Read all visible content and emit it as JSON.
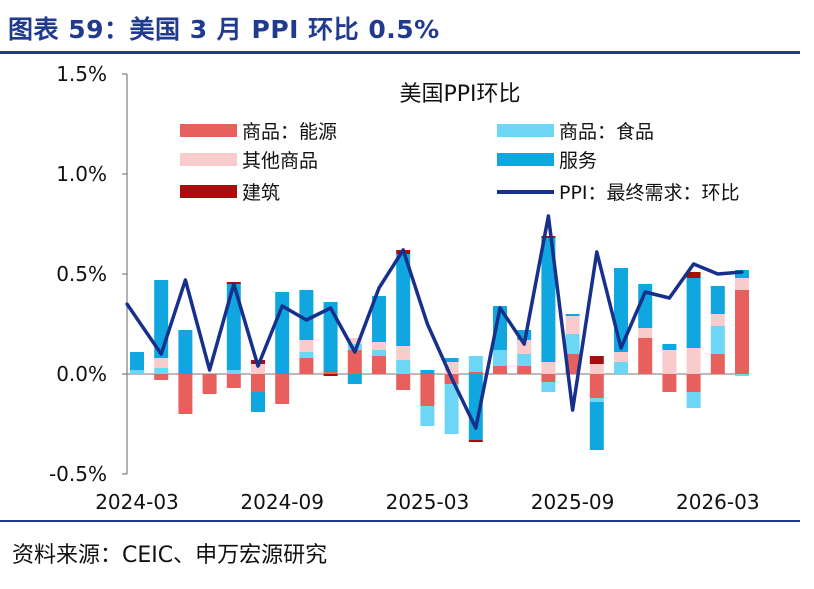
{
  "figure": {
    "title": "图表 59：美国 3 月 PPI 环比 0.5%",
    "source": "资料来源：CEIC、申万宏源研究"
  },
  "colors": {
    "energy": "#e8605e",
    "food": "#6dd6f5",
    "other_goods": "#f8cccc",
    "services": "#10a7e1",
    "construction": "#a90e0e",
    "ppi_line": "#17308c",
    "accent": "#1f3a8f"
  },
  "chart_data": {
    "type": "bar",
    "title": "美国PPI环比",
    "xlabel": "",
    "ylabel": "",
    "ylim": [
      -0.5,
      1.5
    ],
    "y_ticks": [
      "-0.5%",
      "0.0%",
      "0.5%",
      "1.0%",
      "1.5%"
    ],
    "y_tick_values": [
      -0.5,
      0.0,
      0.5,
      1.0,
      1.5
    ],
    "x_tick_labels": [
      "2024-03",
      "2024-09",
      "2025-03",
      "2025-09",
      "2026-03"
    ],
    "x_tick_indices": [
      0,
      6,
      12,
      18,
      24
    ],
    "legend_position": "top",
    "grid": false,
    "categories": [
      "2024-02",
      "2024-03",
      "2024-04",
      "2024-05",
      "2024-06",
      "2024-07",
      "2024-08",
      "2024-09",
      "2024-10",
      "2024-11",
      "2024-12",
      "2025-01",
      "2025-02",
      "2025-03",
      "2025-04",
      "2025-05",
      "2025-06",
      "2025-07",
      "2025-08",
      "2025-09",
      "2025-10",
      "2025-11",
      "2025-12",
      "2026-01",
      "2026-02",
      "2026-03"
    ],
    "series": [
      {
        "name": "商品：能源",
        "kind": "bar",
        "color_key": "energy",
        "values": [
          0.0,
          -0.03,
          -0.2,
          -0.1,
          -0.07,
          -0.09,
          -0.15,
          0.08,
          0.01,
          0.12,
          0.09,
          -0.08,
          -0.16,
          -0.05,
          0.01,
          0.04,
          0.04,
          -0.04,
          0.1,
          -0.12,
          0.0,
          0.18,
          -0.09,
          -0.09,
          0.1,
          0.42
        ]
      },
      {
        "name": "商品：食品",
        "kind": "bar",
        "color_key": "food",
        "values": [
          0.02,
          0.03,
          0.0,
          0.0,
          0.02,
          0.0,
          0.0,
          0.03,
          0.0,
          0.03,
          0.03,
          0.07,
          -0.1,
          -0.25,
          0.08,
          0.08,
          0.06,
          -0.05,
          0.1,
          -0.02,
          0.06,
          0.0,
          0.0,
          -0.08,
          0.14,
          -0.01
        ]
      },
      {
        "name": "其他商品",
        "kind": "bar",
        "color_key": "other_goods",
        "values": [
          0.0,
          0.05,
          0.0,
          0.0,
          0.0,
          0.05,
          0.0,
          0.06,
          0.0,
          0.03,
          0.04,
          0.07,
          0.0,
          0.06,
          0.0,
          0.0,
          0.07,
          0.06,
          0.09,
          0.05,
          0.05,
          0.05,
          0.12,
          0.13,
          0.06,
          0.06
        ]
      },
      {
        "name": "服务",
        "kind": "bar",
        "color_key": "services",
        "values": [
          0.09,
          0.39,
          0.22,
          0.0,
          0.43,
          -0.1,
          0.41,
          0.25,
          0.35,
          -0.05,
          0.23,
          0.46,
          0.02,
          0.02,
          -0.33,
          0.22,
          0.05,
          0.62,
          0.01,
          -0.24,
          0.42,
          0.22,
          0.03,
          0.35,
          0.14,
          0.04
        ]
      },
      {
        "name": "建筑",
        "kind": "bar",
        "color_key": "construction",
        "values": [
          0.0,
          0.0,
          0.0,
          0.0,
          0.01,
          0.02,
          0.0,
          0.0,
          -0.01,
          0.0,
          0.0,
          0.02,
          0.0,
          0.0,
          -0.01,
          0.0,
          0.0,
          0.01,
          0.0,
          0.04,
          0.0,
          0.0,
          0.0,
          0.03,
          0.0,
          0.0
        ]
      },
      {
        "name": "PPI：最终需求：环比",
        "kind": "line",
        "color_key": "ppi_line",
        "values": [
          0.35,
          0.1,
          0.47,
          0.02,
          0.45,
          0.04,
          0.34,
          0.27,
          0.33,
          0.11,
          0.43,
          0.62,
          0.25,
          -0.02,
          -0.27,
          0.33,
          0.15,
          0.79,
          -0.18,
          0.61,
          0.13,
          0.41,
          0.38,
          0.55,
          0.5,
          0.51
        ]
      }
    ]
  }
}
